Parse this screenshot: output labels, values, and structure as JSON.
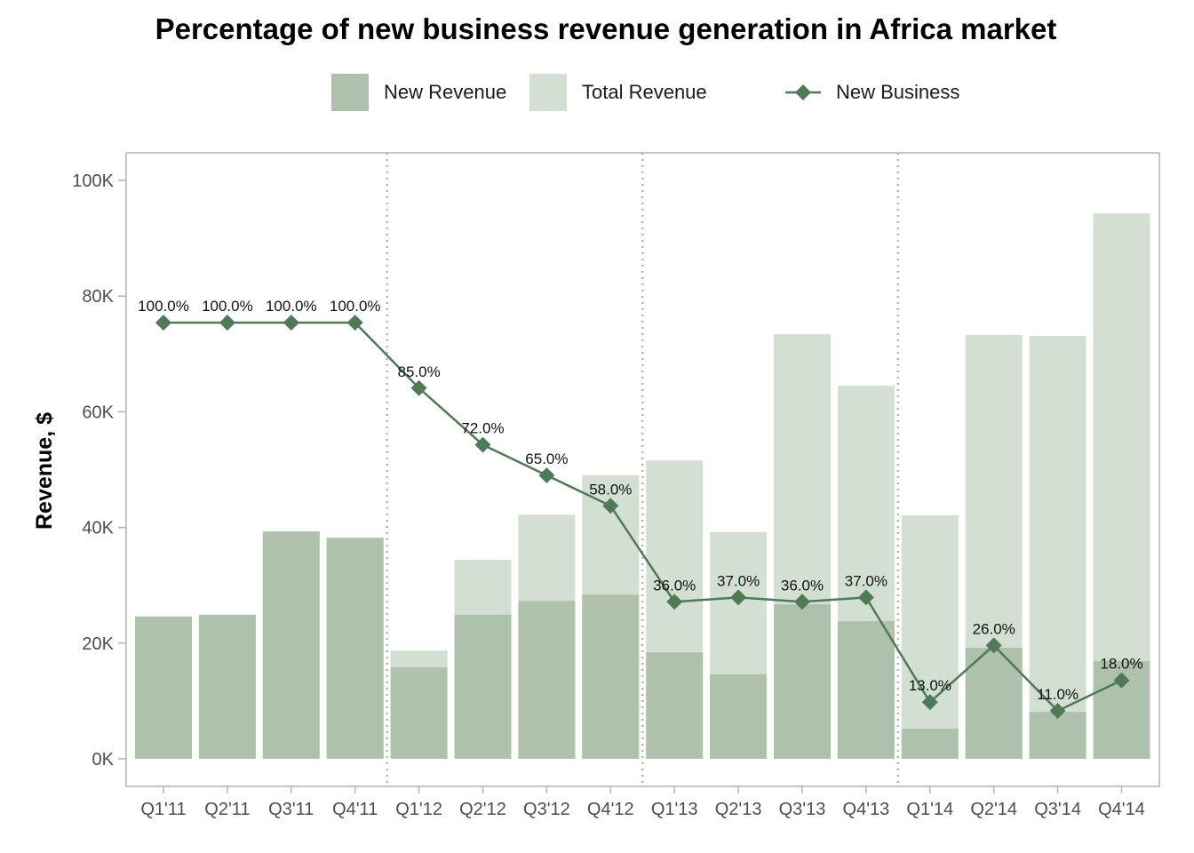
{
  "chart_data": {
    "type": "bar",
    "title": "Percentage of new business revenue generation in Africa market",
    "xlabel": "",
    "ylabel": "Revenue, $",
    "ylim": [
      0,
      100000
    ],
    "yticks": [
      0,
      20000,
      40000,
      60000,
      80000,
      100000
    ],
    "ytick_labels": [
      "0K",
      "20K",
      "40K",
      "60K",
      "80K",
      "100K"
    ],
    "grid": false,
    "legend_position": "top",
    "categories": [
      "Q1'11",
      "Q2'11",
      "Q3'11",
      "Q4'11",
      "Q1'12",
      "Q2'12",
      "Q3'12",
      "Q4'12",
      "Q1'13",
      "Q2'13",
      "Q3'13",
      "Q4'13",
      "Q1'14",
      "Q2'14",
      "Q3'14",
      "Q4'14"
    ],
    "year_separators_after": [
      "Q4'11",
      "Q4'12",
      "Q4'13"
    ],
    "series": [
      {
        "name": "New Revenue",
        "kind": "bar",
        "color": "#adc1ad",
        "values": [
          24600,
          24900,
          39300,
          38200,
          15800,
          24900,
          27300,
          28400,
          18400,
          14600,
          26700,
          23800,
          5200,
          19200,
          8100,
          16900
        ]
      },
      {
        "name": "Total Revenue",
        "kind": "bar",
        "color": "#d3dfd3",
        "values": [
          24600,
          24900,
          39300,
          38200,
          18700,
          34400,
          42200,
          49000,
          51600,
          39200,
          73400,
          64500,
          42100,
          73300,
          73100,
          94300
        ]
      },
      {
        "name": "New Business",
        "kind": "line",
        "color": "#4e7a55",
        "marker": "diamond",
        "unit": "percent",
        "values": [
          100,
          100,
          100,
          100,
          85,
          72,
          65,
          58,
          36,
          37,
          36,
          37,
          13,
          26,
          11,
          18
        ],
        "labels": [
          "100.0%",
          "100.0%",
          "100.0%",
          "100.0%",
          "85.0%",
          "72.0%",
          "65.0%",
          "58.0%",
          "36.0%",
          "37.0%",
          "36.0%",
          "37.0%",
          "13.0%",
          "26.0%",
          "11.0%",
          "18.0%"
        ],
        "percent_scale_note": "100% aligned with approx 75.4K on revenue axis"
      }
    ]
  },
  "legend": {
    "items": [
      {
        "label": "New Revenue",
        "color": "#adc1ad"
      },
      {
        "label": "Total Revenue",
        "color": "#d3dfd3"
      },
      {
        "label": "New Business",
        "color": "#4e7a55"
      }
    ]
  }
}
